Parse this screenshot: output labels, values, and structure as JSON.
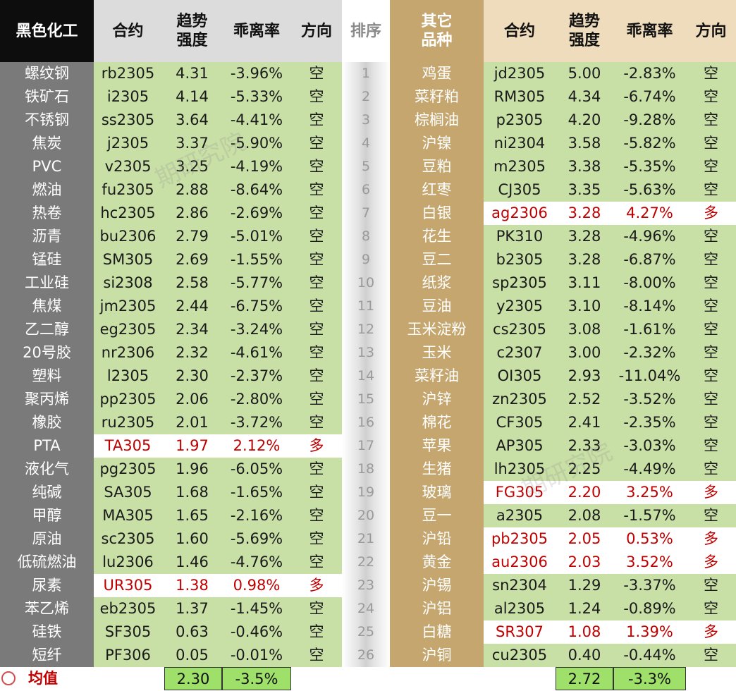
{
  "headers": {
    "left": [
      "黑色化工",
      "合约",
      "趋势\n强度",
      "乖离率",
      "方向"
    ],
    "rank": "排序",
    "right": [
      "其它\n品种",
      "合约",
      "趋势\n强度",
      "乖离率",
      "方向"
    ]
  },
  "left_rows": [
    {
      "name": "螺纹钢",
      "contract": "rb2305",
      "strength": "4.31",
      "dev": "-3.96%",
      "dir": "空",
      "long": false
    },
    {
      "name": "铁矿石",
      "contract": "i2305",
      "strength": "4.14",
      "dev": "-5.33%",
      "dir": "空",
      "long": false
    },
    {
      "name": "不锈钢",
      "contract": "ss2305",
      "strength": "3.64",
      "dev": "-4.41%",
      "dir": "空",
      "long": false
    },
    {
      "name": "焦炭",
      "contract": "j2305",
      "strength": "3.37",
      "dev": "-5.90%",
      "dir": "空",
      "long": false
    },
    {
      "name": "PVC",
      "contract": "v2305",
      "strength": "3.25",
      "dev": "-4.19%",
      "dir": "空",
      "long": false
    },
    {
      "name": "燃油",
      "contract": "fu2305",
      "strength": "2.88",
      "dev": "-8.64%",
      "dir": "空",
      "long": false
    },
    {
      "name": "热卷",
      "contract": "hc2305",
      "strength": "2.86",
      "dev": "-2.69%",
      "dir": "空",
      "long": false
    },
    {
      "name": "沥青",
      "contract": "bu2306",
      "strength": "2.79",
      "dev": "-5.01%",
      "dir": "空",
      "long": false
    },
    {
      "name": "锰硅",
      "contract": "SM305",
      "strength": "2.69",
      "dev": "-1.55%",
      "dir": "空",
      "long": false
    },
    {
      "name": "工业硅",
      "contract": "si2308",
      "strength": "2.58",
      "dev": "-5.77%",
      "dir": "空",
      "long": false
    },
    {
      "name": "焦煤",
      "contract": "jm2305",
      "strength": "2.44",
      "dev": "-6.75%",
      "dir": "空",
      "long": false
    },
    {
      "name": "乙二醇",
      "contract": "eg2305",
      "strength": "2.34",
      "dev": "-3.24%",
      "dir": "空",
      "long": false
    },
    {
      "name": "20号胶",
      "contract": "nr2306",
      "strength": "2.32",
      "dev": "-4.61%",
      "dir": "空",
      "long": false
    },
    {
      "name": "塑料",
      "contract": "l2305",
      "strength": "2.30",
      "dev": "-2.37%",
      "dir": "空",
      "long": false
    },
    {
      "name": "聚丙烯",
      "contract": "pp2305",
      "strength": "2.06",
      "dev": "-2.80%",
      "dir": "空",
      "long": false
    },
    {
      "name": "橡胶",
      "contract": "ru2305",
      "strength": "2.01",
      "dev": "-3.72%",
      "dir": "空",
      "long": false
    },
    {
      "name": "PTA",
      "contract": "TA305",
      "strength": "1.97",
      "dev": "2.12%",
      "dir": "多",
      "long": true
    },
    {
      "name": "液化气",
      "contract": "pg2305",
      "strength": "1.96",
      "dev": "-6.05%",
      "dir": "空",
      "long": false
    },
    {
      "name": "纯碱",
      "contract": "SA305",
      "strength": "1.68",
      "dev": "-1.65%",
      "dir": "空",
      "long": false
    },
    {
      "name": "甲醇",
      "contract": "MA305",
      "strength": "1.65",
      "dev": "-2.16%",
      "dir": "空",
      "long": false
    },
    {
      "name": "原油",
      "contract": "sc2305",
      "strength": "1.60",
      "dev": "-5.69%",
      "dir": "空",
      "long": false
    },
    {
      "name": "低硫燃油",
      "contract": "lu2306",
      "strength": "1.46",
      "dev": "-4.76%",
      "dir": "空",
      "long": false
    },
    {
      "name": "尿素",
      "contract": "UR305",
      "strength": "1.38",
      "dev": "0.98%",
      "dir": "多",
      "long": true
    },
    {
      "name": "苯乙烯",
      "contract": "eb2305",
      "strength": "1.37",
      "dev": "-1.45%",
      "dir": "空",
      "long": false
    },
    {
      "name": "硅铁",
      "contract": "SF305",
      "strength": "0.63",
      "dev": "-0.46%",
      "dir": "空",
      "long": false
    },
    {
      "name": "短纤",
      "contract": "PF306",
      "strength": "0.05",
      "dev": "-0.01%",
      "dir": "空",
      "long": false
    }
  ],
  "ranks": [
    "1",
    "2",
    "3",
    "4",
    "5",
    "6",
    "7",
    "8",
    "9",
    "10",
    "11",
    "12",
    "13",
    "14",
    "15",
    "16",
    "17",
    "18",
    "19",
    "20",
    "21",
    "22",
    "23",
    "24",
    "25",
    "26"
  ],
  "right_rows": [
    {
      "name": "鸡蛋",
      "contract": "jd2305",
      "strength": "5.00",
      "dev": "-2.83%",
      "dir": "空",
      "long": false
    },
    {
      "name": "菜籽粕",
      "contract": "RM305",
      "strength": "4.34",
      "dev": "-6.74%",
      "dir": "空",
      "long": false
    },
    {
      "name": "棕榈油",
      "contract": "p2305",
      "strength": "4.20",
      "dev": "-9.28%",
      "dir": "空",
      "long": false
    },
    {
      "name": "沪镍",
      "contract": "ni2304",
      "strength": "3.58",
      "dev": "-5.82%",
      "dir": "空",
      "long": false
    },
    {
      "name": "豆粕",
      "contract": "m2305",
      "strength": "3.38",
      "dev": "-5.35%",
      "dir": "空",
      "long": false
    },
    {
      "name": "红枣",
      "contract": "CJ305",
      "strength": "3.35",
      "dev": "-5.63%",
      "dir": "空",
      "long": false
    },
    {
      "name": "白银",
      "contract": "ag2306",
      "strength": "3.28",
      "dev": "4.27%",
      "dir": "多",
      "long": true
    },
    {
      "name": "花生",
      "contract": "PK310",
      "strength": "3.28",
      "dev": "-4.96%",
      "dir": "空",
      "long": false
    },
    {
      "name": "豆二",
      "contract": "b2305",
      "strength": "3.28",
      "dev": "-6.87%",
      "dir": "空",
      "long": false
    },
    {
      "name": "纸浆",
      "contract": "sp2305",
      "strength": "3.11",
      "dev": "-8.00%",
      "dir": "空",
      "long": false
    },
    {
      "name": "豆油",
      "contract": "y2305",
      "strength": "3.10",
      "dev": "-8.14%",
      "dir": "空",
      "long": false
    },
    {
      "name": "玉米淀粉",
      "contract": "cs2305",
      "strength": "3.08",
      "dev": "-1.61%",
      "dir": "空",
      "long": false
    },
    {
      "name": "玉米",
      "contract": "c2307",
      "strength": "3.00",
      "dev": "-2.32%",
      "dir": "空",
      "long": false
    },
    {
      "name": "菜籽油",
      "contract": "OI305",
      "strength": "2.93",
      "dev": "-11.04%",
      "dir": "空",
      "long": false
    },
    {
      "name": "沪锌",
      "contract": "zn2305",
      "strength": "2.52",
      "dev": "-3.52%",
      "dir": "空",
      "long": false
    },
    {
      "name": "棉花",
      "contract": "CF305",
      "strength": "2.41",
      "dev": "-2.35%",
      "dir": "空",
      "long": false
    },
    {
      "name": "苹果",
      "contract": "AP305",
      "strength": "2.33",
      "dev": "-3.03%",
      "dir": "空",
      "long": false
    },
    {
      "name": "生猪",
      "contract": "lh2305",
      "strength": "2.25",
      "dev": "-4.49%",
      "dir": "空",
      "long": false
    },
    {
      "name": "玻璃",
      "contract": "FG305",
      "strength": "2.20",
      "dev": "3.25%",
      "dir": "多",
      "long": true
    },
    {
      "name": "豆一",
      "contract": "a2305",
      "strength": "2.08",
      "dev": "-1.57%",
      "dir": "空",
      "long": false
    },
    {
      "name": "沪铅",
      "contract": "pb2305",
      "strength": "2.05",
      "dev": "0.53%",
      "dir": "多",
      "long": true
    },
    {
      "name": "黄金",
      "contract": "au2306",
      "strength": "2.03",
      "dev": "3.52%",
      "dir": "多",
      "long": true
    },
    {
      "name": "沪锡",
      "contract": "sn2304",
      "strength": "1.29",
      "dev": "-3.37%",
      "dir": "空",
      "long": false
    },
    {
      "name": "沪铝",
      "contract": "al2305",
      "strength": "1.24",
      "dev": "-0.89%",
      "dir": "空",
      "long": false
    },
    {
      "name": "白糖",
      "contract": "SR307",
      "strength": "1.08",
      "dev": "1.39%",
      "dir": "多",
      "long": true
    },
    {
      "name": "沪铜",
      "contract": "cu2305",
      "strength": "0.40",
      "dev": "-0.44%",
      "dir": "空",
      "long": false
    }
  ],
  "footer": {
    "label": "均值",
    "left_avg_strength": "2.30",
    "left_avg_dev": "-3.5%",
    "right_avg_strength": "2.72",
    "right_avg_dev": "-3.3%"
  },
  "watermark": "期研究院",
  "colors": {
    "black_header": "#0d0d0d",
    "name_col": "#7a7a7a",
    "gold": "#c5a66e",
    "green_cell": "#c8dfa6",
    "red_text": "#c00000",
    "avg_green": "#9ee06a"
  }
}
